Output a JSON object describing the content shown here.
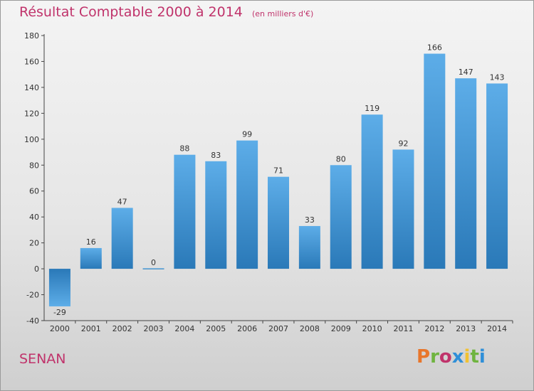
{
  "header": {
    "title": "Résultat Comptable 2000 à 2014",
    "subtitle": "(en milliers d'€)"
  },
  "footer": {
    "commune": "SENAN",
    "logo_text": "Proxiti",
    "logo_colors": [
      "#e8762b",
      "#6fb43f",
      "#c0336b",
      "#2f8fd8",
      "#f1c232",
      "#6fb43f",
      "#2f8fd8"
    ]
  },
  "colors": {
    "accent": "#c0336b",
    "bar_top": "#5dade8",
    "bar_bottom": "#2a79b8",
    "axis": "#444444",
    "grid": "#cfcfcf"
  },
  "chart_data": {
    "type": "bar",
    "title": "Résultat Comptable 2000 à 2014",
    "xlabel": "",
    "ylabel": "",
    "categories": [
      "2000",
      "2001",
      "2002",
      "2003",
      "2004",
      "2005",
      "2006",
      "2007",
      "2008",
      "2009",
      "2010",
      "2011",
      "2012",
      "2013",
      "2014"
    ],
    "values": [
      -29,
      16,
      47,
      0,
      88,
      83,
      99,
      71,
      33,
      80,
      119,
      92,
      166,
      147,
      143
    ],
    "ylim": [
      -40,
      180
    ],
    "yticks": [
      -40,
      -20,
      0,
      20,
      40,
      60,
      80,
      100,
      120,
      140,
      160,
      180
    ],
    "grid": false,
    "legend": "none"
  }
}
